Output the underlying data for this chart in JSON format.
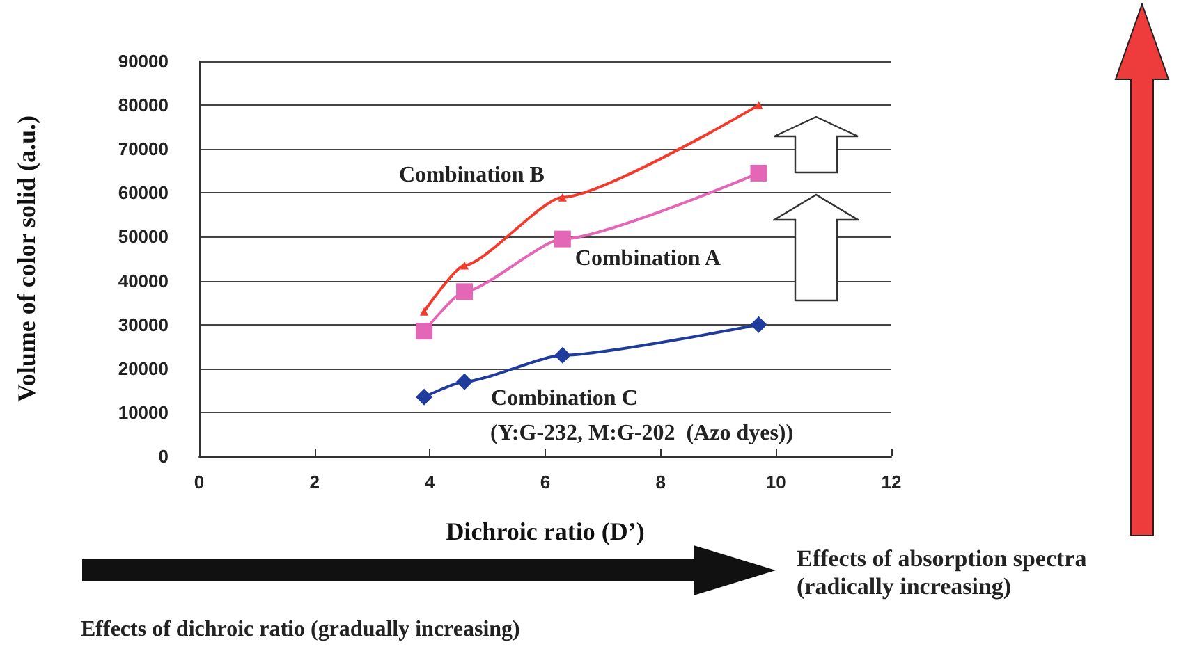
{
  "chart_data": {
    "type": "line",
    "xlabel": "Dichroic ratio (D’)",
    "ylabel": "Volume of color solid (a.u.)",
    "x": [
      3.9,
      4.6,
      6.3,
      9.7
    ],
    "series": [
      {
        "name": "Combination B",
        "color": "#f23b2c",
        "marker": "triangle",
        "values": [
          33000,
          43500,
          59000,
          80000
        ]
      },
      {
        "name": "Combination A",
        "color": "#e466b6",
        "marker": "square",
        "values": [
          28500,
          37500,
          49500,
          64500
        ]
      },
      {
        "name": "Combination C",
        "color": "#1f3c9c",
        "marker": "diamond",
        "values": [
          13500,
          17000,
          23000,
          30000
        ]
      }
    ],
    "xlim": [
      0,
      12
    ],
    "xticks": [
      0,
      2,
      4,
      6,
      8,
      10,
      12
    ],
    "ylim": [
      0,
      90000
    ],
    "yticks": [
      0,
      10000,
      20000,
      30000,
      40000,
      50000,
      60000,
      70000,
      80000,
      90000
    ],
    "grid": "y",
    "line_style": "solid",
    "annotations": [
      "(Y:G-232, M:G-202  (Azo dyes))",
      "Effects of absorption spectra\n(radically increasing)",
      "Effects of dichroic ratio (gradually increasing)"
    ]
  }
}
